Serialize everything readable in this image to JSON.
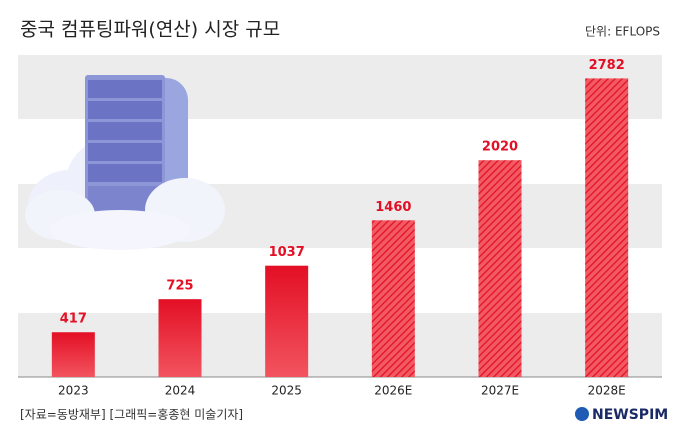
{
  "chart_data": {
    "type": "bar",
    "title": "중국 컴퓨팅파워(연산) 시장 규모",
    "unit": "단위: EFLOPS",
    "categories": [
      "2023",
      "2024",
      "2025",
      "2026E",
      "2027E",
      "2028E"
    ],
    "values": [
      417,
      725,
      1037,
      1460,
      2020,
      2782
    ],
    "styles": [
      "solid",
      "solid",
      "solid",
      "hatched",
      "hatched",
      "hatched"
    ],
    "color": "#e30f25",
    "ylim": [
      0,
      3000
    ],
    "source": "[자료=동방재부] [그래픽=홍종현 미술기자]",
    "brand": "NEWSPIM"
  }
}
